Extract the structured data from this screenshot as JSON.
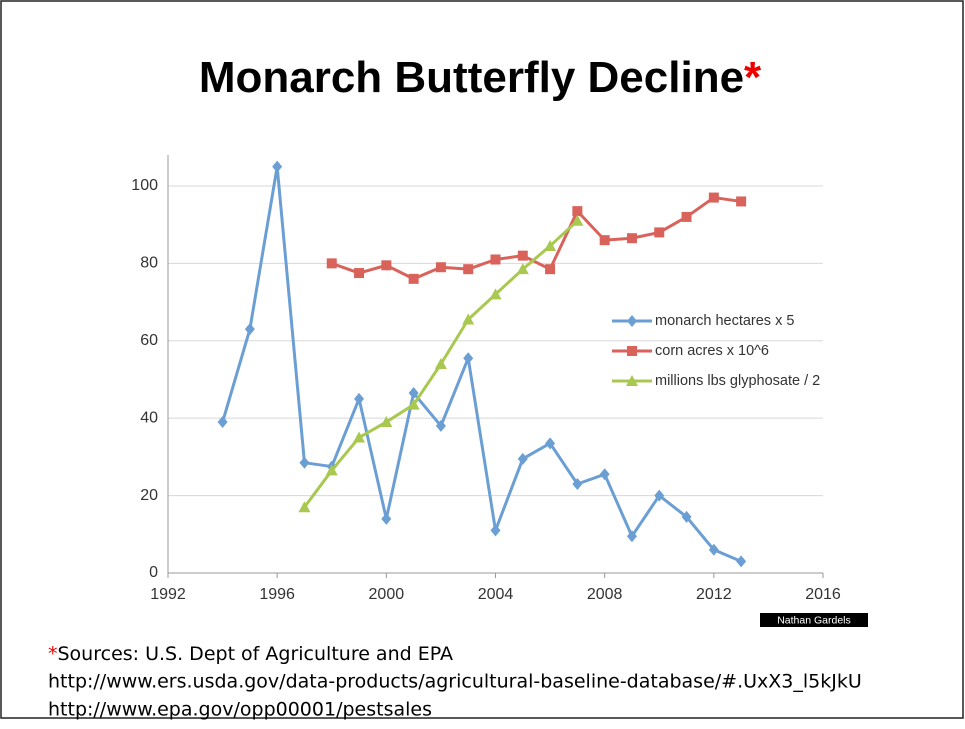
{
  "title": "Monarch Butterfly Decline",
  "title_mark": "*",
  "chart_data": {
    "type": "line",
    "x": [
      1994,
      1995,
      1996,
      1997,
      1998,
      1999,
      2000,
      2001,
      2002,
      2003,
      2004,
      2005,
      2006,
      2007,
      2008,
      2009,
      2010,
      2011,
      2012,
      2013
    ],
    "series": [
      {
        "name": "monarch hectares x 5",
        "color": "#6b9fd4",
        "marker": "diamond",
        "values": [
          39,
          63,
          105,
          28.5,
          27.5,
          45,
          14,
          46.5,
          38,
          55.5,
          11,
          29.5,
          33.5,
          23,
          25.5,
          9.5,
          20,
          14.5,
          6,
          3
        ]
      },
      {
        "name": "corn acres x 10^6",
        "color": "#d9625a",
        "marker": "square",
        "values": [
          null,
          null,
          null,
          null,
          80,
          77.5,
          79.5,
          76,
          79,
          78.5,
          81,
          82,
          78.5,
          93.5,
          86,
          86.5,
          88,
          92,
          97,
          96
        ]
      },
      {
        "name": "millions lbs glyphosate / 2",
        "color": "#a8c850",
        "marker": "triangle",
        "values": [
          null,
          null,
          null,
          17,
          26.5,
          35,
          39,
          43.5,
          54,
          65.5,
          72,
          78.5,
          84.5,
          91,
          null,
          null,
          null,
          null,
          null,
          null
        ]
      }
    ],
    "xlim": [
      1992,
      2016
    ],
    "xticks": [
      1992,
      1996,
      2000,
      2004,
      2008,
      2012,
      2016
    ],
    "ylim": [
      0,
      108
    ],
    "yticks": [
      0,
      20,
      40,
      60,
      80,
      100
    ],
    "grid": true,
    "legend": "right"
  },
  "watermark": "Nathan Gardels",
  "sources": {
    "mark": "*",
    "label": "Sources: U.S. Dept of Agriculture and EPA",
    "links": [
      "http://www.ers.usda.gov/data-products/agricultural-baseline-database/#.UxX3_l5kJkU",
      "http://www.epa.gov/opp00001/pestsales"
    ]
  }
}
